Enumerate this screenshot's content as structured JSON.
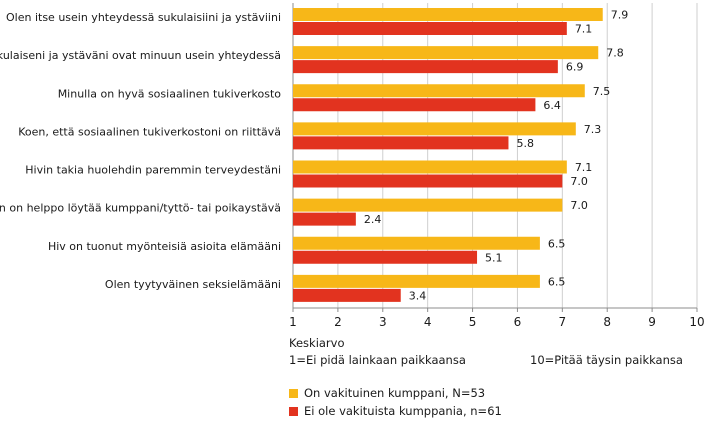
{
  "chart_data": {
    "type": "bar",
    "orientation": "horizontal",
    "categories": [
      "Olen itse usein yhteydessä sukulaisiini ja ystäviini",
      "Sukulaiseni ja ystäväni ovat minuun usein yhteydessä",
      "Minulla on hyvä sosiaalinen tukiverkosto",
      "Koen, että sosiaalinen tukiverkostoni on riittävä",
      "Hivin takia huolehdin paremmin terveydestäni",
      "Minun on helppo löytää kumppani/tyttö- tai poikaystävä",
      "Hiv on tuonut myönteisiä asioita elämääni",
      "Olen tyytyväinen seksielämääni"
    ],
    "series": [
      {
        "name": "On vakituinen kumppani, N=53",
        "color": "#f7b718",
        "values": [
          7.9,
          7.8,
          7.5,
          7.3,
          7.1,
          7.0,
          6.5,
          6.5
        ],
        "labels": [
          "7.9",
          "7.8",
          "7.5",
          "7.3",
          "7.1",
          "7.0",
          "6.5",
          "6.5"
        ]
      },
      {
        "name": "Ei ole vakituista kumppania, n=61",
        "color": "#e2331f",
        "values": [
          7.1,
          6.9,
          6.4,
          5.8,
          7.0,
          2.4,
          5.1,
          3.4
        ],
        "labels": [
          "7.1",
          "6.9",
          "6.4",
          "5.8",
          "7.0",
          "2.4",
          "5.1",
          "3.4"
        ]
      }
    ],
    "xlim": [
      1,
      10
    ],
    "xticks": [
      "1",
      "2",
      "3",
      "4",
      "5",
      "6",
      "7",
      "8",
      "9",
      "10"
    ],
    "grid": true,
    "legend_position": "bottom-left"
  },
  "notes": {
    "xlabel": "Keskiarvo",
    "scale_min": "1=Ei pidä lainkaan paikkaansa",
    "scale_max": "10=Pitää täysin paikkansa"
  },
  "legend": {
    "item1": "On vakituinen kumppani, N=53",
    "item2": "Ei ole vakituista kumppania, n=61"
  }
}
